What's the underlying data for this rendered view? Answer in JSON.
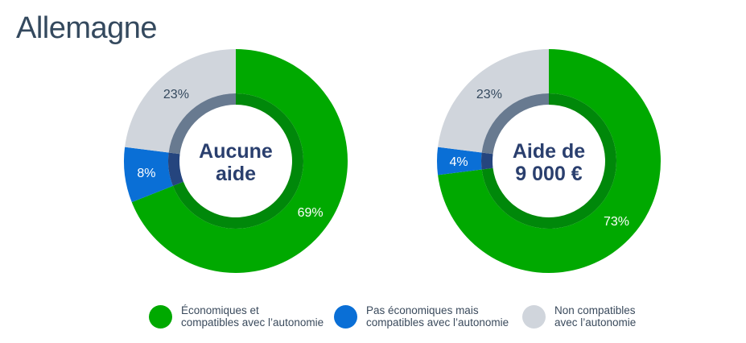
{
  "title": "Allemagne",
  "chart_data": [
    {
      "type": "pie",
      "variant": "donut",
      "center_label": [
        "Aucune",
        "aide"
      ],
      "start": "top, clockwise",
      "slices": [
        {
          "category": "Économiques et compatibles avec l’autonomie",
          "value": 69,
          "label": "69%"
        },
        {
          "category": "Pas économiques mais compatibles avec l’autonomie",
          "value": 8,
          "label": "8%"
        },
        {
          "category": "Non compatibles avec l’autonomie",
          "value": 23,
          "label": "23%"
        }
      ]
    },
    {
      "type": "pie",
      "variant": "donut",
      "center_label": [
        "Aide de",
        "9 000 €"
      ],
      "start": "top, clockwise",
      "slices": [
        {
          "category": "Économiques et compatibles avec l’autonomie",
          "value": 73,
          "label": "73%"
        },
        {
          "category": "Pas économiques mais compatibles avec l’autonomie",
          "value": 4,
          "label": "4%"
        },
        {
          "category": "Non compatibles avec l’autonomie",
          "value": 23,
          "label": "23%"
        }
      ]
    }
  ],
  "legend": [
    {
      "lines": [
        "Économiques et",
        "compatibles avec l’autonomie"
      ],
      "color": "#00a900",
      "inner_color": "#00880a",
      "label_color": "#ffffff"
    },
    {
      "lines": [
        "Pas économiques mais",
        "compatibles avec l’autonomie"
      ],
      "color": "#0a6fd6",
      "inner_color": "#25457e",
      "label_color": "#ffffff"
    },
    {
      "lines": [
        "Non compatibles",
        "avec l’autonomie"
      ],
      "color": "#d0d5dc",
      "inner_color": "#687a90",
      "label_color": "#34495e"
    }
  ]
}
